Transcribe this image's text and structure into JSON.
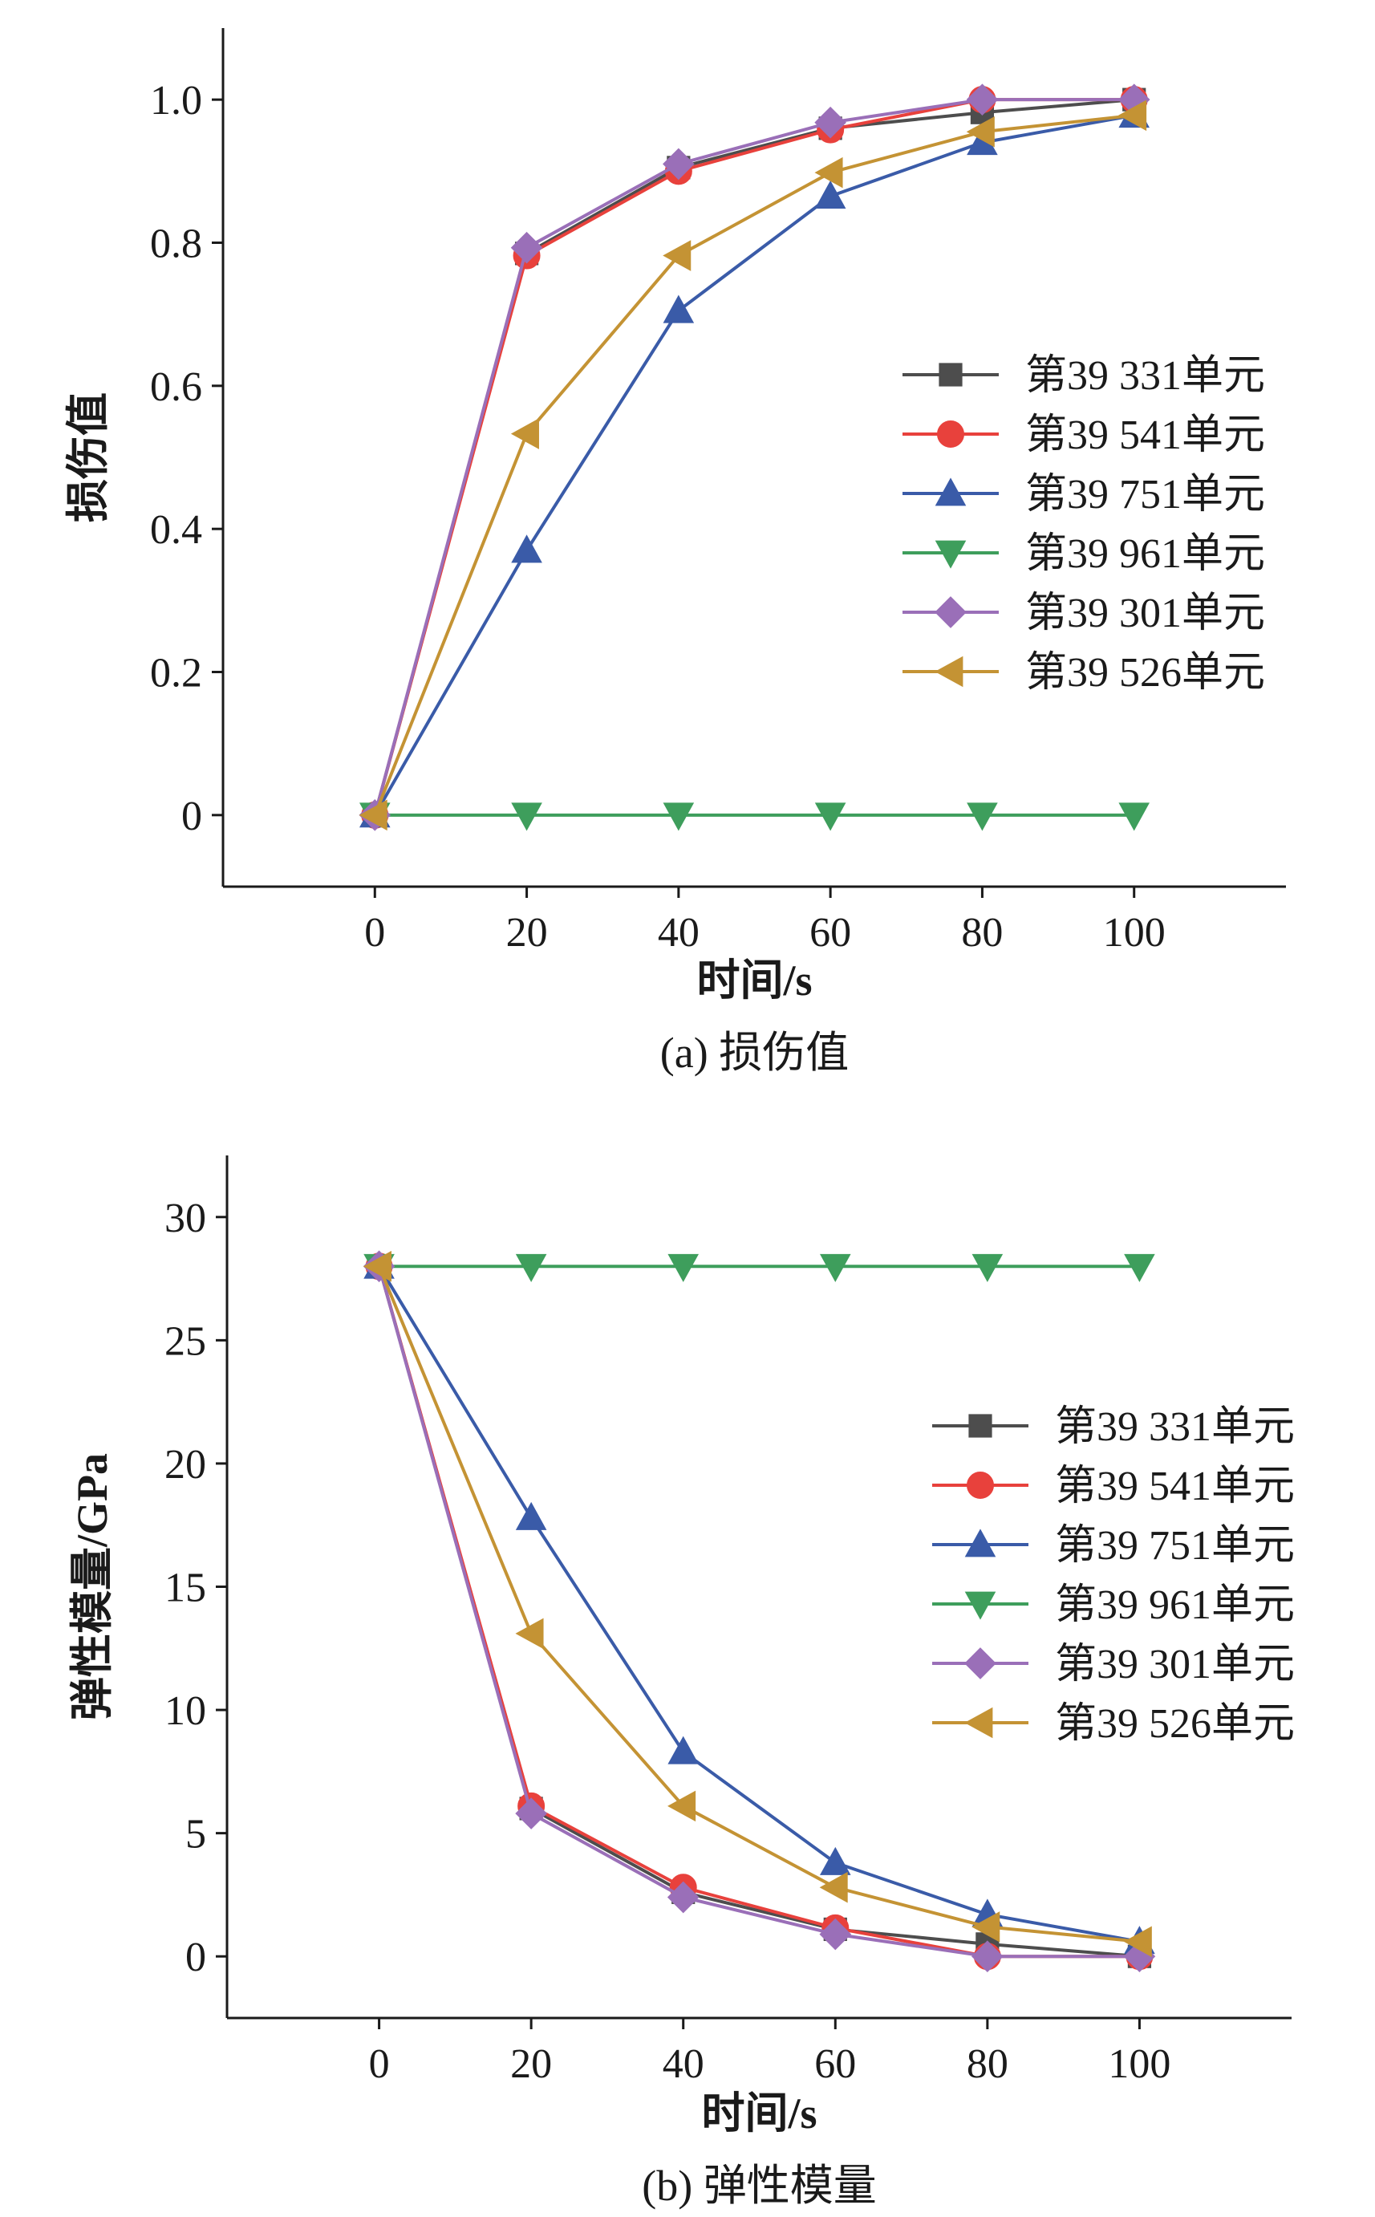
{
  "chart_data": [
    {
      "type": "line",
      "caption": "(a) 损伤值",
      "xlabel": "时间/s",
      "ylabel": "损伤值",
      "x": [
        0,
        20,
        40,
        60,
        80,
        100
      ],
      "xlim": [
        -20,
        120
      ],
      "ylim": [
        -0.1,
        1.1
      ],
      "xticks": [
        0,
        20,
        40,
        60,
        80,
        100
      ],
      "yticks": [
        0,
        0.2,
        0.4,
        0.6,
        0.8,
        1.0
      ],
      "xtick_labels": [
        "0",
        "20",
        "40",
        "60",
        "80",
        "100"
      ],
      "ytick_labels": [
        "0",
        "0.2",
        "0.4",
        "0.6",
        "0.8",
        "1.0"
      ],
      "legend_position": "right-middle",
      "grid": false,
      "series": [
        {
          "name": "第39 331单元",
          "color": "#4d4d4d",
          "marker": "square",
          "values": [
            0,
            0.785,
            0.905,
            0.96,
            0.982,
            1.0
          ]
        },
        {
          "name": "第39 541单元",
          "color": "#e8413c",
          "marker": "circle",
          "values": [
            0,
            0.782,
            0.9,
            0.958,
            1.0,
            1.0
          ]
        },
        {
          "name": "第39 751单元",
          "color": "#3a5ba8",
          "marker": "triangle-up",
          "values": [
            0,
            0.37,
            0.705,
            0.865,
            0.94,
            0.978
          ]
        },
        {
          "name": "第39 961单元",
          "color": "#3e9e5c",
          "marker": "triangle-down",
          "values": [
            0,
            0,
            0,
            0,
            0,
            0
          ]
        },
        {
          "name": "第39 301单元",
          "color": "#9a6fb8",
          "marker": "diamond",
          "values": [
            0,
            0.793,
            0.91,
            0.968,
            1.0,
            1.0
          ]
        },
        {
          "name": "第39 526单元",
          "color": "#c49334",
          "marker": "triangle-left",
          "values": [
            0,
            0.533,
            0.782,
            0.898,
            0.955,
            0.978
          ]
        }
      ]
    },
    {
      "type": "line",
      "caption": "(b) 弹性模量",
      "xlabel": "时间/s",
      "ylabel": "弹性模量/GPa",
      "x": [
        0,
        20,
        40,
        60,
        80,
        100
      ],
      "xlim": [
        -20,
        120
      ],
      "ylim": [
        -2.5,
        32.5
      ],
      "xticks": [
        0,
        20,
        40,
        60,
        80,
        100
      ],
      "yticks": [
        0,
        5,
        10,
        15,
        20,
        25,
        30
      ],
      "xtick_labels": [
        "0",
        "20",
        "40",
        "60",
        "80",
        "100"
      ],
      "ytick_labels": [
        "0",
        "5",
        "10",
        "15",
        "20",
        "25",
        "30"
      ],
      "legend_position": "right-middle",
      "grid": false,
      "series": [
        {
          "name": "第39 331单元",
          "color": "#4d4d4d",
          "marker": "square",
          "values": [
            28,
            6.0,
            2.6,
            1.1,
            0.5,
            0
          ]
        },
        {
          "name": "第39 541单元",
          "color": "#e8413c",
          "marker": "circle",
          "values": [
            28,
            6.1,
            2.8,
            1.15,
            0,
            0
          ]
        },
        {
          "name": "第39 751单元",
          "color": "#3a5ba8",
          "marker": "triangle-up",
          "values": [
            28,
            17.8,
            8.3,
            3.8,
            1.7,
            0.6
          ]
        },
        {
          "name": "第39 961单元",
          "color": "#3e9e5c",
          "marker": "triangle-down",
          "values": [
            28,
            28,
            28,
            28,
            28,
            28
          ]
        },
        {
          "name": "第39 301单元",
          "color": "#9a6fb8",
          "marker": "diamond",
          "values": [
            28,
            5.8,
            2.4,
            0.9,
            0,
            0
          ]
        },
        {
          "name": "第39 526单元",
          "color": "#c49334",
          "marker": "triangle-left",
          "values": [
            28,
            13.1,
            6.1,
            2.8,
            1.2,
            0.6
          ]
        }
      ]
    }
  ]
}
